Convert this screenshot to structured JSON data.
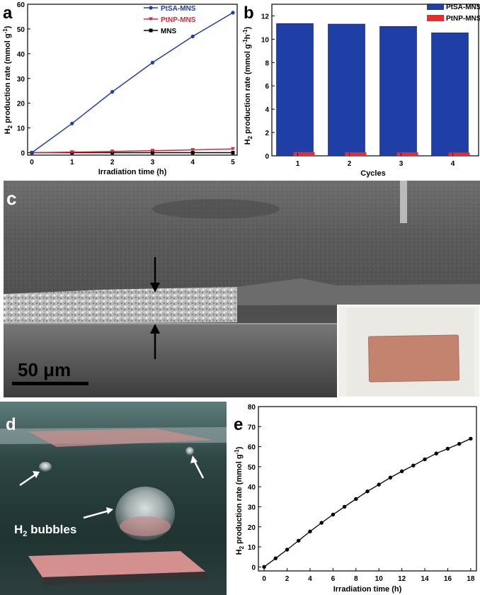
{
  "panel_labels": {
    "a": "a",
    "b": "b",
    "c": "c",
    "d": "d",
    "e": "e"
  },
  "colors": {
    "pt_sa": "#1f3fa6",
    "pt_np": "#d42a3c",
    "mns": "#000000",
    "bar_blue": "#1f3fa6",
    "bar_red": "#ee2b2b",
    "line_e": "#000000"
  },
  "micrograph": {
    "scale_bar": "50 μm"
  },
  "photo": {
    "caption_main": "H",
    "caption_sub": "2",
    "caption_rest": " bubbles"
  },
  "chart_data": [
    {
      "type": "line",
      "panel": "a",
      "x": [
        0,
        1,
        2,
        3,
        4,
        5
      ],
      "series": [
        {
          "name": "PtSA-MNS",
          "values": [
            0,
            11.8,
            24.6,
            36.4,
            47.0,
            56.6
          ]
        },
        {
          "name": "PtNP-MNS",
          "values": [
            0,
            0.2,
            0.5,
            0.8,
            1.1,
            1.5
          ]
        },
        {
          "name": "MNS",
          "values": [
            0,
            0,
            0,
            0,
            0,
            0
          ]
        }
      ],
      "xlabel": "Irradiation time (h)",
      "ylabel_main": "H",
      "ylabel_sub": "2",
      "ylabel_rest": " production rate (mmol g",
      "ylabel_sup": "-1",
      "ylabel_end": ")",
      "xlim": [
        0,
        5
      ],
      "ylim": [
        -1,
        60
      ],
      "xticks": [
        0,
        1,
        2,
        3,
        4,
        5
      ],
      "yticks": [
        0,
        10,
        20,
        30,
        40,
        50,
        60
      ],
      "legend_position": "top-right"
    },
    {
      "type": "bar",
      "panel": "b",
      "categories": [
        "1",
        "2",
        "3",
        "4"
      ],
      "series": [
        {
          "name": "PtSA-MNS",
          "values": [
            11.35,
            11.3,
            11.1,
            10.55
          ]
        },
        {
          "name": "PtNP-MNS",
          "values": [
            0.32,
            0.3,
            0.3,
            0.28
          ]
        }
      ],
      "xlabel": "Cycles",
      "ylabel_main": "H",
      "ylabel_sub": "2",
      "ylabel_rest": " production rate (mmol g",
      "ylabel_sup": "-1",
      "ylabel_mid": "h",
      "ylabel_sup2": "-1",
      "ylabel_end": ")",
      "ylim": [
        0,
        13
      ],
      "yticks": [
        0,
        2,
        4,
        6,
        8,
        10,
        12
      ],
      "legend_position": "top-right"
    },
    {
      "type": "line",
      "panel": "e",
      "x": [
        0,
        1,
        2,
        3,
        4,
        5,
        6,
        7,
        8,
        9,
        10,
        11,
        12,
        13,
        14,
        15,
        16,
        17,
        18
      ],
      "series": [
        {
          "values": [
            0,
            4.3,
            8.6,
            13.1,
            17.7,
            22.0,
            26.1,
            30.0,
            33.9,
            37.7,
            41.1,
            44.6,
            47.7,
            50.6,
            53.7,
            56.6,
            59.0,
            61.4,
            64.0
          ]
        }
      ],
      "xlabel": "Irradiation time (h)",
      "ylabel_main": "H",
      "ylabel_sub": "2",
      "ylabel_rest": " production rate (mmol g",
      "ylabel_sup": "-1",
      "ylabel_end": ")",
      "xlim": [
        -0.5,
        18.5
      ],
      "ylim": [
        -2,
        80
      ],
      "xticks": [
        0,
        2,
        4,
        6,
        8,
        10,
        12,
        14,
        16,
        18
      ],
      "yticks": [
        0,
        10,
        20,
        30,
        40,
        50,
        60,
        70,
        80
      ]
    }
  ]
}
